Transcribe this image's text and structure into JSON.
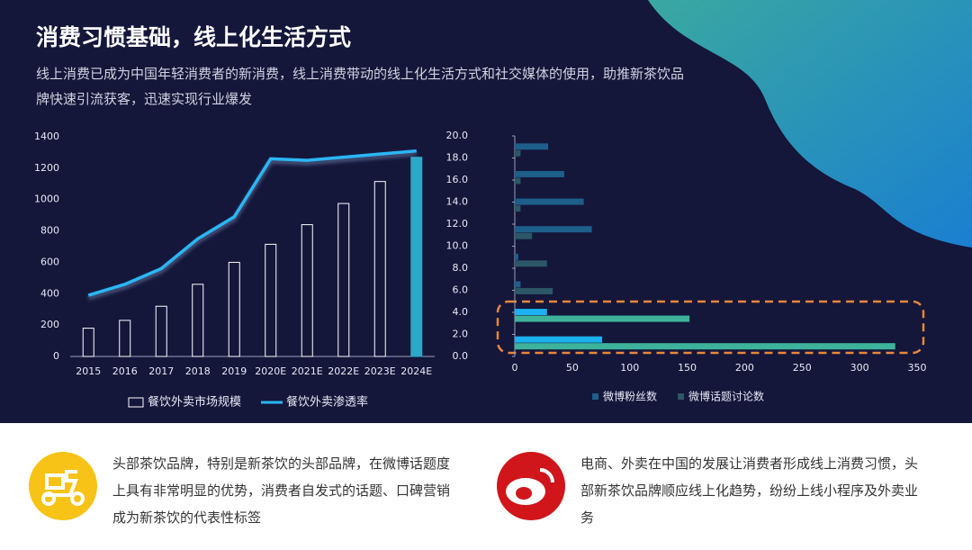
{
  "header": {
    "title": "消费习惯基础，线上化生活方式",
    "subtitle": "线上消费已成为中国年轻消费者的新消费，线上消费带动的线上化生活方式和社交媒体的使用，助推新茶饮品牌快速引流获客，迅速实现行业爆发"
  },
  "notes": [
    "头部茶饮品牌，特别是新茶饮的头部品牌，在微博话题度上具有非常明显的优势，消费者自发式的话题、口碑营销成为新茶饮的代表性标签",
    "电商、外卖在中国的发展让消费者形成线上消费习惯，头部新茶饮品牌顺应线上化趋势，纷纷上线小程序及外卖业务"
  ],
  "chart_data": [
    {
      "type": "bar_line",
      "categories": [
        "2015",
        "2016",
        "2017",
        "2018",
        "2019",
        "2020E",
        "2021E",
        "2022E",
        "2023E",
        "2024E"
      ],
      "series": [
        {
          "name": "餐饮外卖市场规模",
          "type": "bar",
          "color": "#ffffff",
          "colors": [
            "none",
            "none",
            "none",
            "none",
            "none",
            "none",
            "none",
            "none",
            "none",
            "#2fa8c8"
          ],
          "values": [
            180,
            230,
            320,
            460,
            600,
            715,
            840,
            975,
            1115,
            1270
          ]
        },
        {
          "name": "餐饮外卖渗透率",
          "type": "line",
          "color": "#29b6f6",
          "values": [
            390,
            460,
            560,
            750,
            890,
            1260,
            1250,
            1270,
            1290,
            1310
          ]
        }
      ],
      "ylim": [
        0,
        1400
      ],
      "yticks": [
        0,
        200,
        400,
        600,
        800,
        1000,
        1200,
        1400
      ]
    },
    {
      "type": "hbar",
      "categories": [
        null,
        null,
        null,
        null,
        null,
        null,
        null,
        null
      ],
      "series": [
        {
          "name": "微博粉丝数",
          "color": "#1d5f8a",
          "colors": [
            "#1ab2f0",
            "#1ab2f0",
            "#1d5f8a",
            "#1d5f8a",
            "#1d5f8a",
            "#1d5f8a",
            "#1d5f8a",
            "#1d5f8a"
          ],
          "values": [
            76,
            28,
            5,
            3,
            67,
            60,
            43,
            29
          ]
        },
        {
          "name": "微博话题讨论数",
          "color": "#2b5766",
          "colors": [
            "#3cb39a",
            "#3cb39a",
            "#2b5766",
            "#2b5766",
            "#2b5766",
            "#2b5766",
            "#2b5766",
            "#2b5766"
          ],
          "values": [
            331,
            152,
            33,
            28,
            15,
            5,
            5,
            5
          ]
        }
      ],
      "xlim": [
        0,
        350
      ],
      "xticks": [
        0,
        50,
        100,
        150,
        200,
        250,
        300,
        350
      ],
      "ylim": [
        0,
        20
      ],
      "yticks": [
        {
          "value": 0,
          "label": "0.0"
        },
        {
          "value": 2,
          "label": "2.0"
        },
        {
          "value": 4,
          "label": "4.0"
        },
        {
          "value": 6,
          "label": "6.0"
        },
        {
          "value": 8,
          "label": "8.0"
        },
        {
          "value": 10,
          "label": "10.0"
        },
        {
          "value": 12,
          "label": "12.0"
        },
        {
          "value": 14,
          "label": "14.0"
        },
        {
          "value": 16,
          "label": "16.0"
        },
        {
          "value": 18,
          "label": "18.0"
        },
        {
          "value": 20,
          "label": "20.0"
        }
      ]
    }
  ]
}
